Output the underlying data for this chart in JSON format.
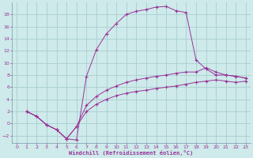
{
  "xlabel": "Windchill (Refroidissement éolien,°C)",
  "background_color": "#ceeaea",
  "line_color": "#993399",
  "grid_color": "#a8cece",
  "xlim": [
    -0.5,
    23.5
  ],
  "ylim": [
    -3.2,
    20.0
  ],
  "xticks": [
    0,
    1,
    2,
    3,
    4,
    5,
    6,
    7,
    8,
    9,
    10,
    11,
    12,
    13,
    14,
    15,
    16,
    17,
    18,
    19,
    20,
    21,
    22,
    23
  ],
  "yticks": [
    -2,
    0,
    2,
    4,
    6,
    8,
    10,
    12,
    14,
    16,
    18
  ],
  "series_x": [
    [
      1,
      2,
      3,
      4,
      5,
      6,
      7,
      8,
      9,
      10,
      11,
      12,
      13,
      14,
      15,
      16,
      17,
      18,
      19,
      20,
      21,
      22,
      23
    ],
    [
      1,
      2,
      3,
      4,
      5,
      6,
      7,
      8,
      9,
      10,
      11,
      12,
      13,
      14,
      15,
      16,
      17,
      18,
      19,
      20,
      21,
      22,
      23
    ],
    [
      1,
      2,
      3,
      4,
      5,
      6,
      7,
      8,
      9,
      10,
      11,
      12,
      13,
      14,
      15,
      16,
      17,
      18,
      19,
      20,
      21,
      22,
      23
    ]
  ],
  "series_y": [
    [
      2.0,
      1.2,
      -0.2,
      -1.0,
      -2.5,
      -2.7,
      7.8,
      12.2,
      14.8,
      16.5,
      18.0,
      18.5,
      18.8,
      19.2,
      19.3,
      18.6,
      18.3,
      10.5,
      9.0,
      8.0,
      8.0,
      7.8,
      7.5
    ],
    [
      2.0,
      1.2,
      -0.2,
      -1.0,
      -2.5,
      -0.5,
      3.0,
      4.5,
      5.5,
      6.2,
      6.8,
      7.2,
      7.5,
      7.8,
      8.0,
      8.3,
      8.5,
      8.5,
      9.2,
      8.5,
      8.0,
      7.8,
      7.5
    ],
    [
      2.0,
      1.2,
      -0.2,
      -1.0,
      -2.5,
      -0.5,
      2.0,
      3.2,
      4.0,
      4.6,
      5.0,
      5.3,
      5.5,
      5.8,
      6.0,
      6.2,
      6.5,
      6.8,
      7.0,
      7.2,
      7.0,
      6.8,
      7.0
    ]
  ]
}
